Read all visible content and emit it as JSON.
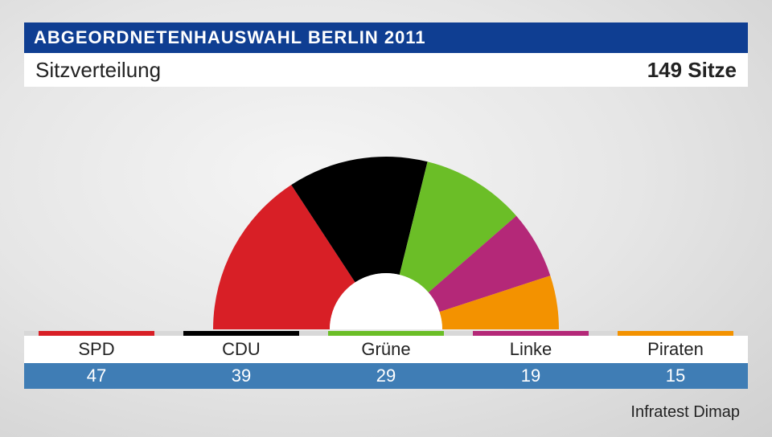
{
  "header": {
    "title": "ABGEORDNETENHAUSWAHL BERLIN 2011",
    "subtitle": "Sitzverteilung",
    "seats_label": "149 Sitze",
    "header_bg": "#0f3e92",
    "header_text_color": "#ffffff",
    "subheader_bg": "#ffffff",
    "subheader_text_color": "#222222"
  },
  "chart": {
    "type": "semi-donut",
    "total_seats": 149,
    "outer_radius": 215,
    "inner_radius": 70,
    "center_fill": "#ffffff",
    "background": "transparent",
    "parties": [
      {
        "name": "SPD",
        "seats": 47,
        "color": "#d81f26"
      },
      {
        "name": "CDU",
        "seats": 39,
        "color": "#000000"
      },
      {
        "name": "Grüne",
        "seats": 29,
        "color": "#6bbe27"
      },
      {
        "name": "Linke",
        "seats": 19,
        "color": "#b42878"
      },
      {
        "name": "Piraten",
        "seats": 15,
        "color": "#f39200"
      }
    ]
  },
  "legend": {
    "color_strip_bg": "#d8d8d8",
    "names_bg": "#ffffff",
    "names_text_color": "#222222",
    "values_bg": "#3f7db5",
    "values_text_color": "#ffffff",
    "name_fontsize": 22,
    "value_fontsize": 22
  },
  "source": {
    "text": "Infratest Dimap",
    "fontsize": 20,
    "color": "#222222"
  }
}
